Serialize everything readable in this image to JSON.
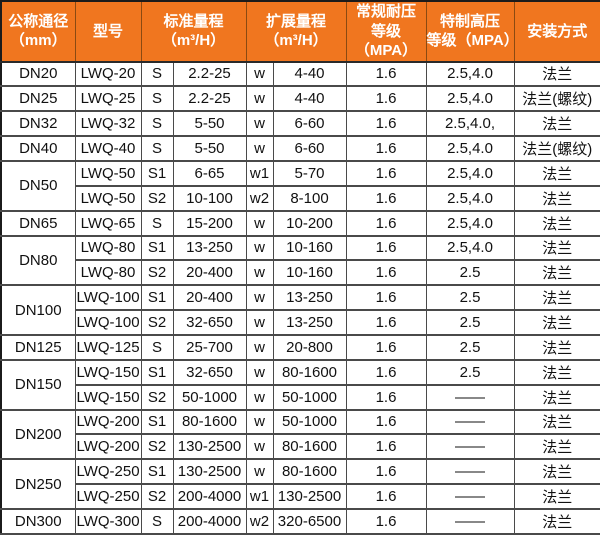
{
  "chart_data": {
    "type": "table",
    "colors": {
      "header_bg": "#F0761F",
      "header_text": "#FFFFFF",
      "grid": "#4A4A4A",
      "outer_border": "#1B1B1B",
      "body_text": "#111111",
      "body_bg": "#FFFFFF"
    },
    "headers": [
      {
        "name": "diameter",
        "colspan": 1,
        "lines": [
          "公称通径",
          "（mm）"
        ]
      },
      {
        "name": "model",
        "colspan": 1,
        "lines": [
          "型号"
        ]
      },
      {
        "name": "standard-range",
        "colspan": 2,
        "lines": [
          "标准量程",
          "（m³/H）"
        ]
      },
      {
        "name": "extended-range",
        "colspan": 2,
        "lines": [
          "扩展量程",
          "（m³/H）"
        ]
      },
      {
        "name": "normal-pressure",
        "colspan": 1,
        "lines": [
          "常规耐压",
          "等级（MPA）"
        ]
      },
      {
        "name": "special-high-pressure",
        "colspan": 1,
        "lines": [
          "特制高压",
          "等级（MPA）"
        ]
      },
      {
        "name": "installation",
        "colspan": 1,
        "lines": [
          "安装方式"
        ]
      }
    ],
    "col_keys": [
      "model",
      "s",
      "std",
      "w",
      "ext",
      "normal",
      "high",
      "install"
    ],
    "rows": [
      {
        "dn": "DN20",
        "dn_span": 1,
        "model": "LWQ-20",
        "s": "S",
        "std": "2.2-25",
        "w": "w",
        "ext": "4-40",
        "normal": "1.6",
        "high": "2.5,4.0",
        "install": "法兰"
      },
      {
        "dn": "DN25",
        "dn_span": 1,
        "model": "LWQ-25",
        "s": "S",
        "std": "2.2-25",
        "w": "w",
        "ext": "4-40",
        "normal": "1.6",
        "high": "2.5,4.0",
        "install": "法兰(螺纹)"
      },
      {
        "dn": "DN32",
        "dn_span": 1,
        "model": "LWQ-32",
        "s": "S",
        "std": "5-50",
        "w": "w",
        "ext": "6-60",
        "normal": "1.6",
        "high": "2.5,4.0,",
        "install": "法兰"
      },
      {
        "dn": "DN40",
        "dn_span": 1,
        "model": "LWQ-40",
        "s": "S",
        "std": "5-50",
        "w": "w",
        "ext": "6-60",
        "normal": "1.6",
        "high": "2.5,4.0",
        "install": "法兰(螺纹)"
      },
      {
        "dn": "DN50",
        "dn_span": 2,
        "model": "LWQ-50",
        "s": "S1",
        "std": "6-65",
        "w": "w1",
        "ext": "5-70",
        "normal": "1.6",
        "high": "2.5,4.0",
        "install": "法兰"
      },
      {
        "dn": null,
        "model": "LWQ-50",
        "s": "S2",
        "std": "10-100",
        "w": "w2",
        "ext": "8-100",
        "normal": "1.6",
        "high": "2.5,4.0",
        "install": "法兰"
      },
      {
        "dn": "DN65",
        "dn_span": 1,
        "model": "LWQ-65",
        "s": "S",
        "std": "15-200",
        "w": "w",
        "ext": "10-200",
        "normal": "1.6",
        "high": "2.5,4.0",
        "install": "法兰"
      },
      {
        "dn": "DN80",
        "dn_span": 2,
        "model": "LWQ-80",
        "s": "S1",
        "std": "13-250",
        "w": "w",
        "ext": "10-160",
        "normal": "1.6",
        "high": "2.5,4.0",
        "install": "法兰"
      },
      {
        "dn": null,
        "model": "LWQ-80",
        "s": "S2",
        "std": "20-400",
        "w": "w",
        "ext": "10-160",
        "normal": "1.6",
        "high": "2.5",
        "install": "法兰"
      },
      {
        "dn": "DN100",
        "dn_span": 2,
        "model": "LWQ-100",
        "s": "S1",
        "std": "20-400",
        "w": "w",
        "ext": "13-250",
        "normal": "1.6",
        "high": "2.5",
        "install": "法兰"
      },
      {
        "dn": null,
        "model": "LWQ-100",
        "s": "S2",
        "std": "32-650",
        "w": "w",
        "ext": "13-250",
        "normal": "1.6",
        "high": "2.5",
        "install": "法兰"
      },
      {
        "dn": "DN125",
        "dn_span": 1,
        "model": "LWQ-125",
        "s": "S",
        "std": "25-700",
        "w": "w",
        "ext": "20-800",
        "normal": "1.6",
        "high": "2.5",
        "install": "法兰"
      },
      {
        "dn": "DN150",
        "dn_span": 2,
        "model": "LWQ-150",
        "s": "S1",
        "std": "32-650",
        "w": "w",
        "ext": "80-1600",
        "normal": "1.6",
        "high": "2.5",
        "install": "法兰"
      },
      {
        "dn": null,
        "model": "LWQ-150",
        "s": "S2",
        "std": "50-1000",
        "w": "w",
        "ext": "50-1000",
        "normal": "1.6",
        "high": "——",
        "install": "法兰"
      },
      {
        "dn": "DN200",
        "dn_span": 2,
        "model": "LWQ-200",
        "s": "S1",
        "std": "80-1600",
        "w": "w",
        "ext": "50-1000",
        "normal": "1.6",
        "high": "——",
        "install": "法兰"
      },
      {
        "dn": null,
        "model": "LWQ-200",
        "s": "S2",
        "std": "130-2500",
        "w": "w",
        "ext": "80-1600",
        "normal": "1.6",
        "high": "——",
        "install": "法兰"
      },
      {
        "dn": "DN250",
        "dn_span": 2,
        "model": "LWQ-250",
        "s": "S1",
        "std": "130-2500",
        "w": "w",
        "ext": "80-1600",
        "normal": "1.6",
        "high": "——",
        "install": "法兰"
      },
      {
        "dn": null,
        "model": "LWQ-250",
        "s": "S2",
        "std": "200-4000",
        "w": "w1",
        "ext": "130-2500",
        "normal": "1.6",
        "high": "——",
        "install": "法兰"
      },
      {
        "dn": "DN300",
        "dn_span": 1,
        "model": "LWQ-300",
        "s": "S",
        "std": "200-4000",
        "w": "w2",
        "ext": "320-6500",
        "normal": "1.6",
        "high": "——",
        "install": "法兰"
      }
    ]
  }
}
